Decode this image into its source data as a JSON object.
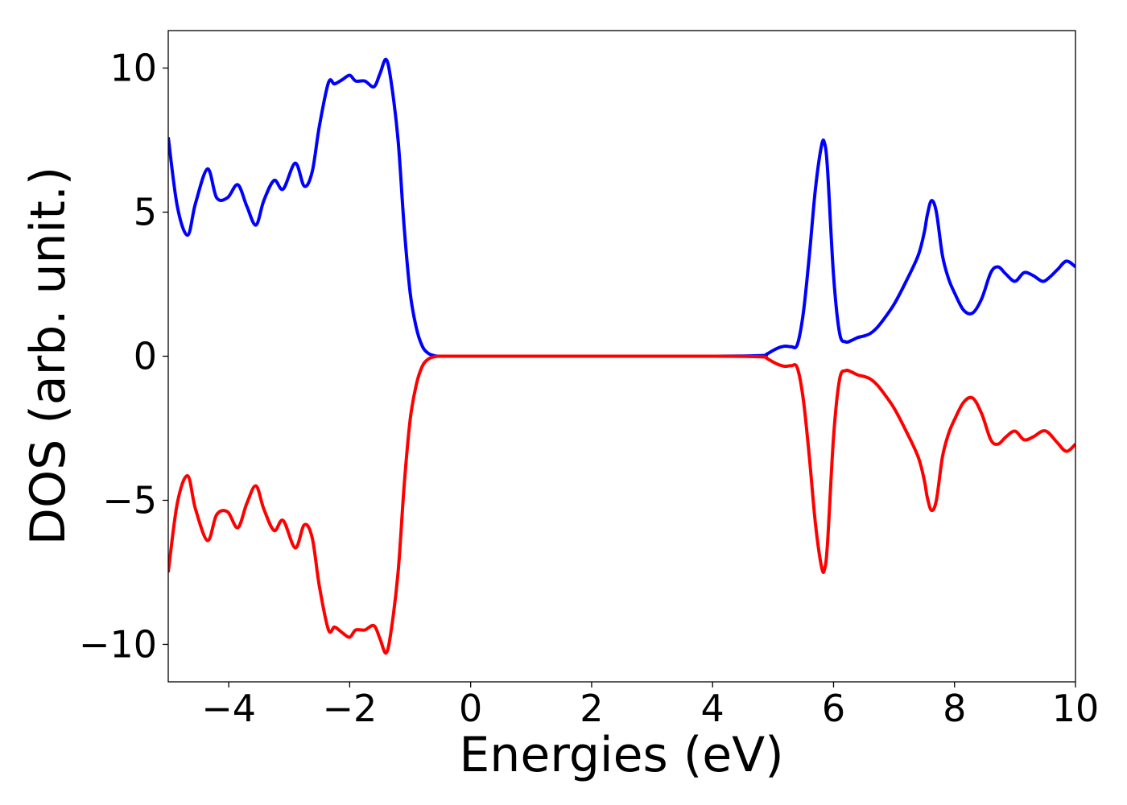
{
  "chart_data": {
    "type": "line",
    "title": "",
    "xlabel": "Energies (eV)",
    "ylabel": "DOS (arb. unit.)",
    "xlim": [
      -5,
      10
    ],
    "ylim": [
      -11.3,
      11.3
    ],
    "grid": false,
    "legend": "none",
    "xticks": [
      -4,
      -2,
      0,
      2,
      4,
      6,
      8,
      10
    ],
    "xtick_labels": [
      "−4",
      "−2",
      "0",
      "2",
      "4",
      "6",
      "8",
      "10"
    ],
    "yticks": [
      -10,
      -5,
      0,
      5,
      10
    ],
    "ytick_labels": [
      "−10",
      "−5",
      "0",
      "5",
      "10"
    ],
    "series": [
      {
        "color": "#0000ff",
        "x": [
          -5.0,
          -4.85,
          -4.68,
          -4.55,
          -4.35,
          -4.2,
          -4.02,
          -3.85,
          -3.7,
          -3.55,
          -3.42,
          -3.25,
          -3.1,
          -2.9,
          -2.75,
          -2.62,
          -2.5,
          -2.35,
          -2.25,
          -2.12,
          -2.0,
          -1.9,
          -1.75,
          -1.6,
          -1.5,
          -1.4,
          -1.32,
          -1.2,
          -1.1,
          -1.0,
          -0.9,
          -0.8,
          -0.7,
          -0.6,
          -0.5,
          0.0,
          2.0,
          4.0,
          4.8,
          4.9,
          5.0,
          5.1,
          5.2,
          5.3,
          5.4,
          5.5,
          5.6,
          5.7,
          5.8,
          5.85,
          5.9,
          6.0,
          6.1,
          6.2,
          6.3,
          6.4,
          6.5,
          6.6,
          6.7,
          6.8,
          7.0,
          7.2,
          7.4,
          7.5,
          7.55,
          7.62,
          7.7,
          7.8,
          7.9,
          8.0,
          8.15,
          8.3,
          8.45,
          8.6,
          8.72,
          8.85,
          9.0,
          9.15,
          9.3,
          9.45,
          9.55,
          9.7,
          9.85,
          10.0
        ],
        "y": [
          7.6,
          5.2,
          4.2,
          5.3,
          6.5,
          5.5,
          5.5,
          5.95,
          5.2,
          4.55,
          5.4,
          6.1,
          5.8,
          6.7,
          5.9,
          6.4,
          8.0,
          9.5,
          9.45,
          9.6,
          9.75,
          9.55,
          9.55,
          9.35,
          9.8,
          10.3,
          9.6,
          7.5,
          4.5,
          2.2,
          1.0,
          0.35,
          0.1,
          0.02,
          0.0,
          0.0,
          0.0,
          0.0,
          0.02,
          0.08,
          0.2,
          0.3,
          0.35,
          0.33,
          0.4,
          1.5,
          3.5,
          5.8,
          7.3,
          7.4,
          6.5,
          2.8,
          0.8,
          0.5,
          0.55,
          0.65,
          0.7,
          0.78,
          0.95,
          1.2,
          1.8,
          2.6,
          3.5,
          4.3,
          4.9,
          5.4,
          5.0,
          3.5,
          2.7,
          2.2,
          1.6,
          1.5,
          2.0,
          2.9,
          3.1,
          2.85,
          2.6,
          2.9,
          2.8,
          2.6,
          2.7,
          3.0,
          3.3,
          3.1
        ]
      },
      {
        "color": "#ff0000",
        "x": [
          -5.0,
          -4.85,
          -4.68,
          -4.55,
          -4.35,
          -4.2,
          -4.02,
          -3.85,
          -3.7,
          -3.55,
          -3.42,
          -3.25,
          -3.1,
          -2.9,
          -2.75,
          -2.62,
          -2.5,
          -2.35,
          -2.25,
          -2.12,
          -2.0,
          -1.9,
          -1.75,
          -1.6,
          -1.5,
          -1.4,
          -1.32,
          -1.2,
          -1.1,
          -1.0,
          -0.9,
          -0.8,
          -0.7,
          -0.6,
          -0.5,
          0.0,
          2.0,
          4.0,
          4.8,
          4.9,
          5.0,
          5.1,
          5.2,
          5.3,
          5.4,
          5.5,
          5.6,
          5.7,
          5.8,
          5.85,
          5.9,
          6.0,
          6.1,
          6.2,
          6.3,
          6.4,
          6.5,
          6.6,
          6.7,
          6.8,
          7.0,
          7.2,
          7.4,
          7.5,
          7.55,
          7.62,
          7.7,
          7.8,
          7.9,
          8.0,
          8.15,
          8.3,
          8.45,
          8.6,
          8.72,
          8.85,
          9.0,
          9.15,
          9.3,
          9.45,
          9.55,
          9.7,
          9.85,
          10.0
        ],
        "y": [
          -7.5,
          -5.1,
          -4.15,
          -5.3,
          -6.4,
          -5.5,
          -5.4,
          -5.95,
          -5.1,
          -4.5,
          -5.3,
          -6.05,
          -5.7,
          -6.65,
          -5.85,
          -6.3,
          -8.0,
          -9.5,
          -9.4,
          -9.6,
          -9.75,
          -9.5,
          -9.5,
          -9.35,
          -9.8,
          -10.3,
          -9.6,
          -7.5,
          -4.5,
          -2.2,
          -1.0,
          -0.35,
          -0.1,
          -0.02,
          0.0,
          0.0,
          0.0,
          0.0,
          -0.02,
          -0.08,
          -0.2,
          -0.3,
          -0.35,
          -0.33,
          -0.4,
          -1.5,
          -3.5,
          -5.8,
          -7.3,
          -7.4,
          -6.5,
          -2.8,
          -0.8,
          -0.5,
          -0.55,
          -0.65,
          -0.7,
          -0.78,
          -0.95,
          -1.2,
          -1.8,
          -2.6,
          -3.5,
          -4.3,
          -4.9,
          -5.35,
          -5.0,
          -3.5,
          -2.7,
          -2.2,
          -1.6,
          -1.45,
          -2.0,
          -2.9,
          -3.05,
          -2.8,
          -2.6,
          -2.9,
          -2.8,
          -2.6,
          -2.65,
          -3.0,
          -3.3,
          -3.05
        ]
      }
    ]
  }
}
